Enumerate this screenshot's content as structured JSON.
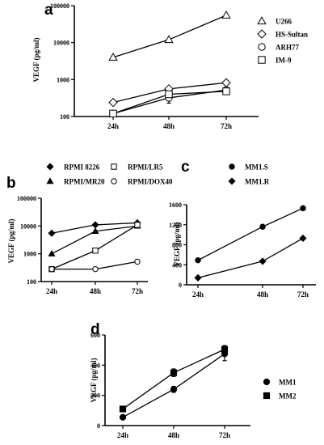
{
  "chart_data": [
    {
      "panel": "a",
      "type": "line",
      "ylabel": "VEGF (pg/ml)",
      "yscale": "log",
      "ylim": [
        100,
        100000
      ],
      "yticks": [
        "100",
        "1000",
        "10000",
        "100000"
      ],
      "categories": [
        "24h",
        "48h",
        "72h"
      ],
      "legend_position": "right",
      "series": [
        {
          "name": "U266",
          "marker": "open-triangle",
          "values": [
            4000,
            12000,
            55000
          ]
        },
        {
          "name": "HS-Sultan",
          "marker": "open-diamond",
          "values": [
            240,
            560,
            820
          ]
        },
        {
          "name": "ARH77",
          "marker": "open-circle",
          "values": [
            120,
            320,
            520
          ],
          "error": [
            0,
            90,
            0
          ]
        },
        {
          "name": "IM-9",
          "marker": "open-square",
          "values": [
            120,
            400,
            480
          ]
        }
      ]
    },
    {
      "panel": "b",
      "type": "line",
      "ylabel": "VEGF (pg/ml)",
      "yscale": "log",
      "ylim": [
        100,
        100000
      ],
      "yticks": [
        "100",
        "1000",
        "10000",
        "100000"
      ],
      "categories": [
        "24h",
        "48h",
        "72h"
      ],
      "legend_position": "top",
      "series": [
        {
          "name": "RPMI 8226",
          "marker": "filled-diamond",
          "values": [
            5500,
            11000,
            13000
          ]
        },
        {
          "name": "RPMI/MR20",
          "marker": "filled-triangle",
          "values": [
            1000,
            6500,
            10000
          ]
        },
        {
          "name": "RPMI/LR5",
          "marker": "open-square",
          "values": [
            280,
            1300,
            11000
          ]
        },
        {
          "name": "RPMI/DOX40",
          "marker": "open-circle",
          "values": [
            280,
            280,
            520
          ]
        }
      ]
    },
    {
      "panel": "c",
      "type": "line",
      "ylabel": "VEGF (pg/ml)",
      "ylim": [
        0,
        1600
      ],
      "yticks": [
        "0",
        "400",
        "800",
        "1200",
        "1600"
      ],
      "categories": [
        "24h",
        "48h",
        "72h"
      ],
      "legend_position": "top",
      "series": [
        {
          "name": "MM1.S",
          "marker": "filled-circle",
          "values": [
            490,
            1160,
            1530
          ]
        },
        {
          "name": "MM1.R",
          "marker": "filled-diamond",
          "values": [
            140,
            470,
            930
          ]
        }
      ]
    },
    {
      "panel": "d",
      "type": "line",
      "ylabel": "VEGF (pg/ml)",
      "ylim": [
        0,
        600
      ],
      "yticks": [
        "0",
        "200",
        "400",
        "600"
      ],
      "categories": [
        "24h",
        "48h",
        "72h"
      ],
      "legend_position": "right",
      "series": [
        {
          "name": "MM1",
          "marker": "filled-circle",
          "values": [
            55,
            240,
            475
          ],
          "error": [
            0,
            20,
            45
          ]
        },
        {
          "name": "MM2",
          "marker": "filled-square",
          "values": [
            110,
            350,
            505
          ],
          "error": [
            0,
            25,
            25
          ]
        }
      ]
    }
  ]
}
